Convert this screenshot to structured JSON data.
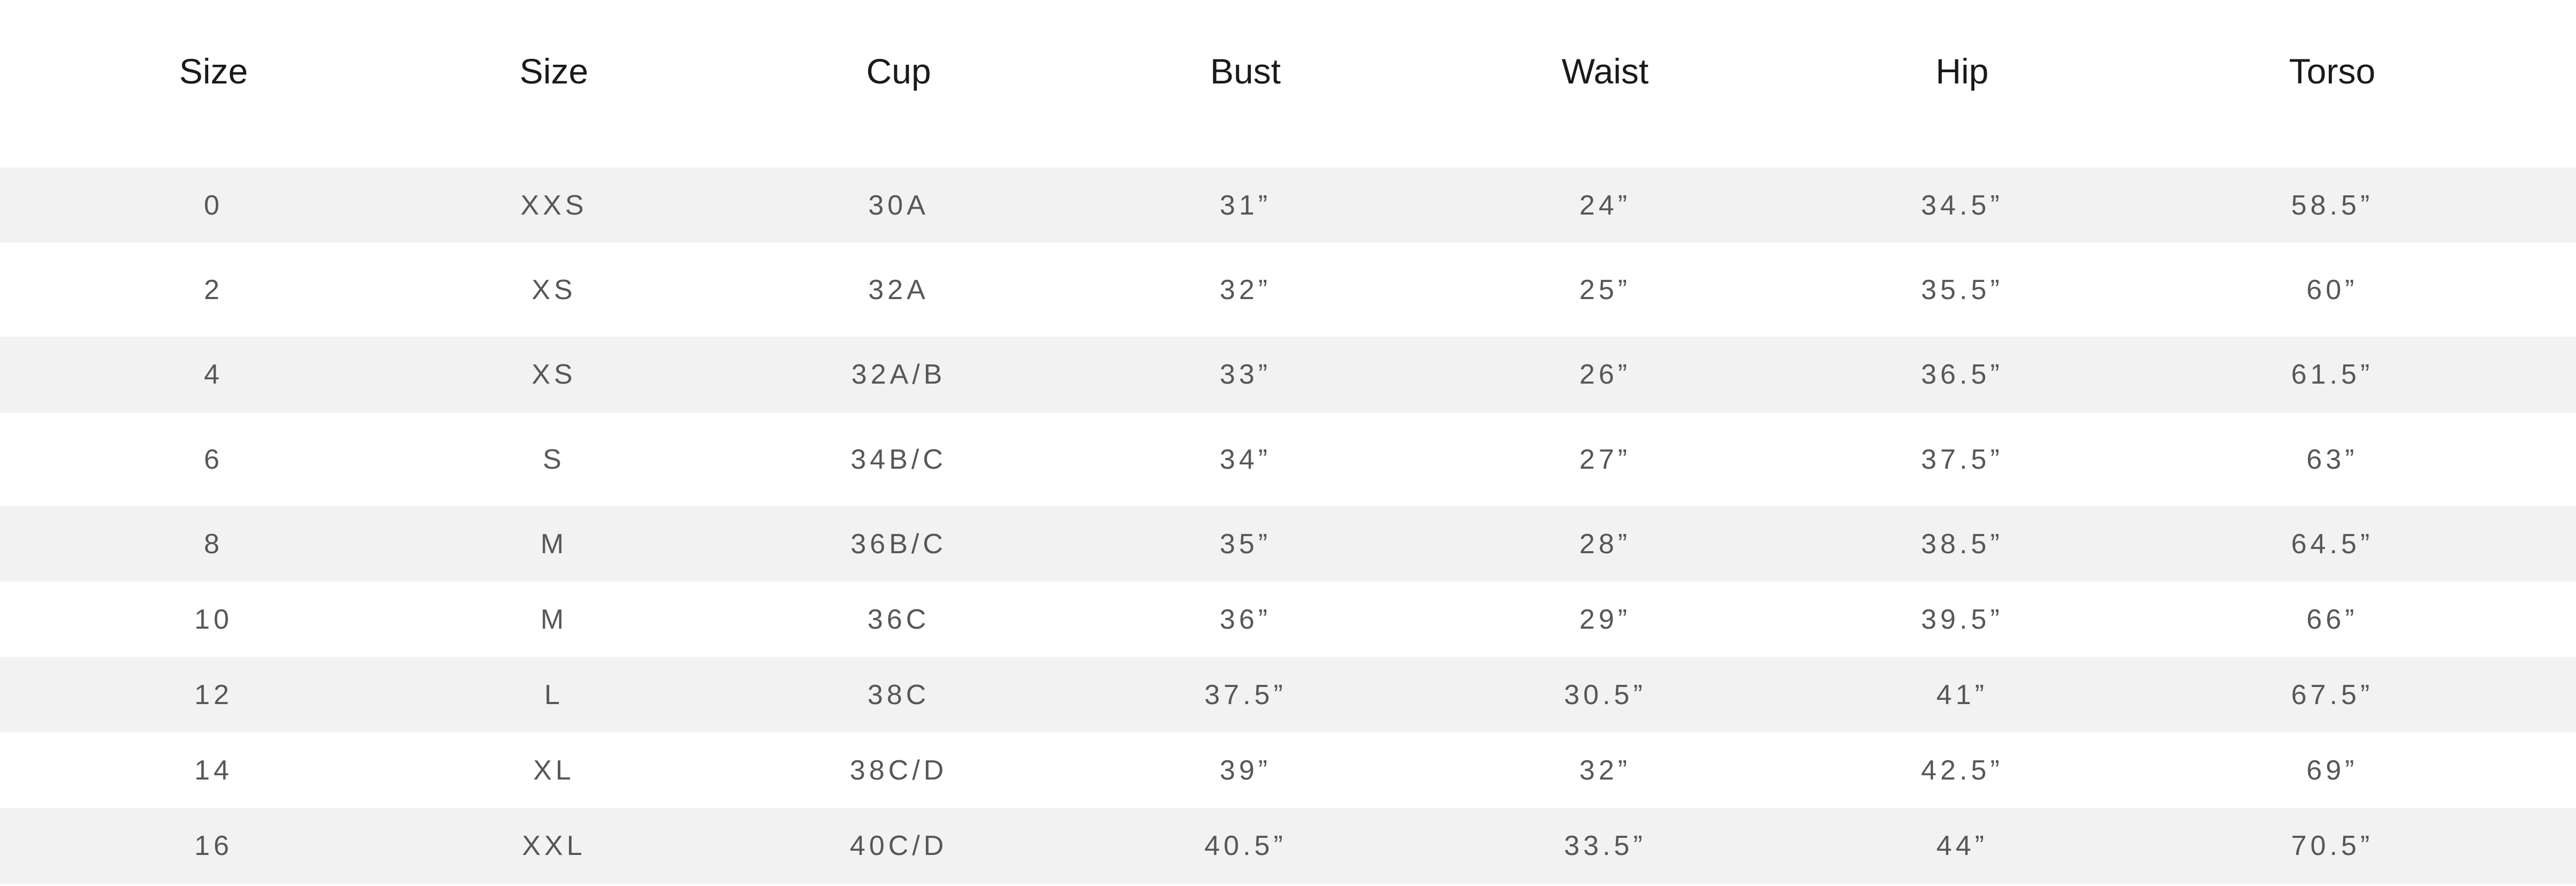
{
  "table": {
    "headers": [
      "Size",
      "Size",
      "Cup",
      "Bust",
      "Waist",
      "Hip",
      "Torso"
    ],
    "rows": [
      [
        "0",
        "XXS",
        "30A",
        "31”",
        "24”",
        "34.5”",
        "58.5”"
      ],
      [
        "2",
        "XS",
        "32A",
        "32”",
        "25”",
        "35.5”",
        "60”"
      ],
      [
        "4",
        "XS",
        "32A/B",
        "33”",
        "26”",
        "36.5”",
        "61.5”"
      ],
      [
        "6",
        "S",
        "34B/C",
        "34”",
        "27”",
        "37.5”",
        "63”"
      ],
      [
        "8",
        "M",
        "36B/C",
        "35”",
        "28”",
        "38.5”",
        "64.5”"
      ],
      [
        "10",
        "M",
        "36C",
        "36”",
        "29”",
        "39.5”",
        "66”"
      ],
      [
        "12",
        "L",
        "38C",
        "37.5”",
        "30.5”",
        "41”",
        "67.5”"
      ],
      [
        "14",
        "XL",
        "38C/D",
        "39”",
        "32”",
        "42.5”",
        "69”"
      ],
      [
        "16",
        "XXL",
        "40C/D",
        "40.5”",
        "33.5”",
        "44”",
        "70.5”"
      ]
    ],
    "colors": {
      "stripe": "#f2f2f2",
      "header_text": "#1a1a1a",
      "cell_text": "#575757"
    }
  }
}
